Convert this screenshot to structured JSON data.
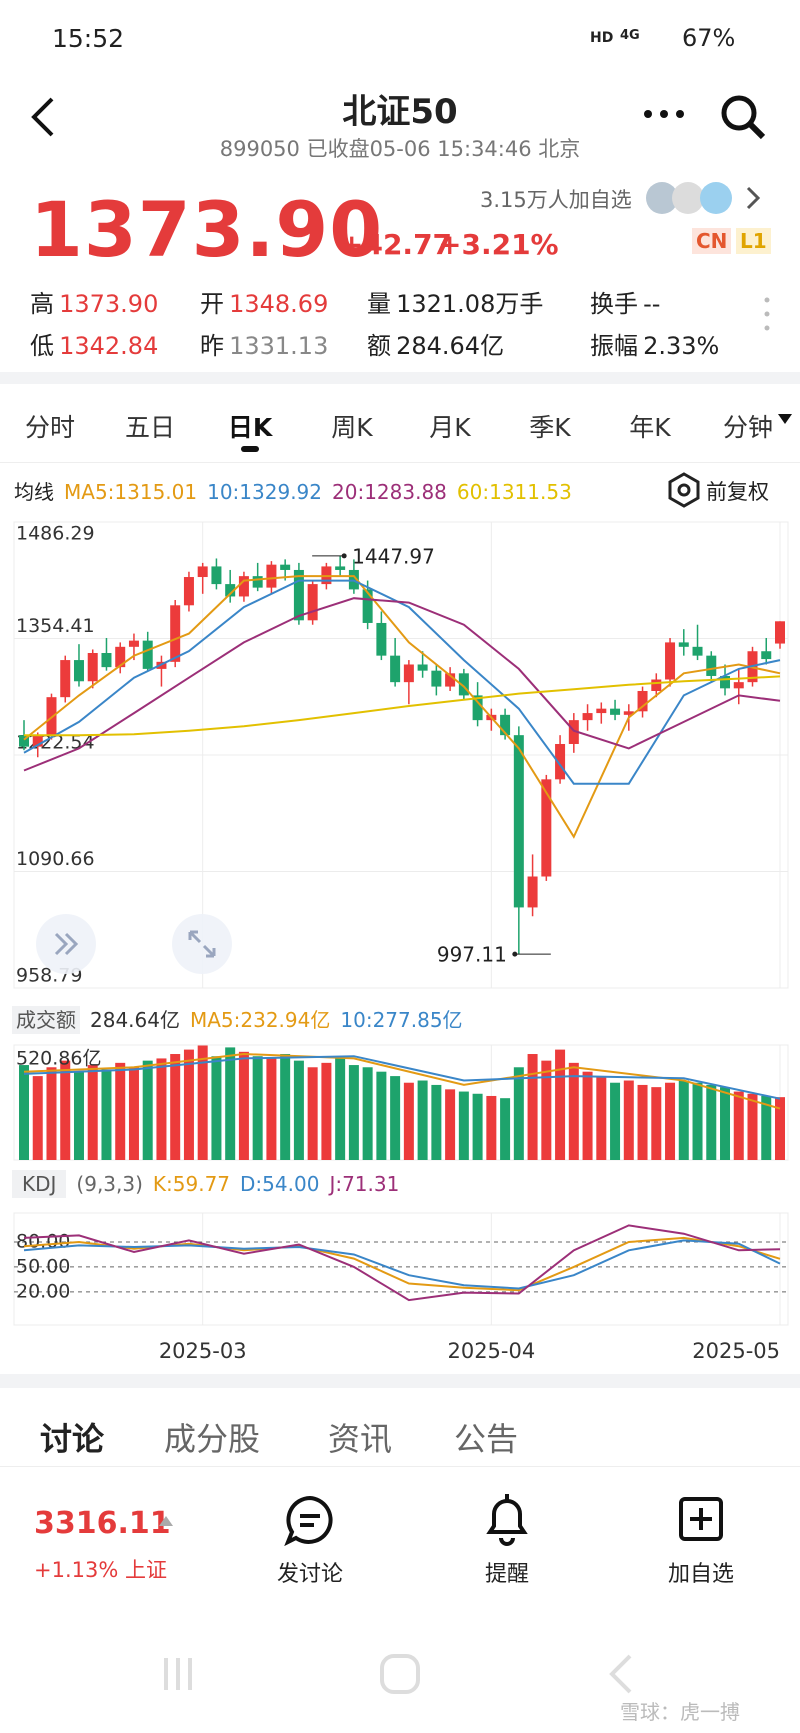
{
  "status_bar": {
    "time": "15:52",
    "network": "HD",
    "signal": "4G",
    "battery": "67%"
  },
  "header": {
    "title": "北证50",
    "subtitle": "899050 已收盘05-06 15:34:46 北京"
  },
  "quote": {
    "price": "1373.90",
    "change": "+42.77",
    "change_pct": "+3.21%",
    "followers": "3.15万人加自选",
    "badges": [
      "CN",
      "L1"
    ],
    "stats": [
      [
        "高",
        "1373.90"
      ],
      [
        "开",
        "1348.69"
      ],
      [
        "量",
        "1321.08万手"
      ],
      [
        "换手",
        "--"
      ],
      [
        "低",
        "1342.84"
      ],
      [
        "昨",
        "1331.13"
      ],
      [
        "额",
        "284.64亿"
      ],
      [
        "振幅",
        "2.33%"
      ]
    ]
  },
  "period_tabs": [
    "分时",
    "五日",
    "日K",
    "周K",
    "月K",
    "季K",
    "年K",
    "分钟"
  ],
  "period_selected": 2,
  "chart": {
    "type": "candlestick",
    "ma_label": "均线",
    "ma_legend": [
      "MA5:1315.01",
      "10:1329.92",
      "20:1283.88",
      "60:1311.53"
    ],
    "adjust": "前复权",
    "up_color": "#ec3b3b",
    "down_color": "#1ea36c",
    "ylim": [
      958.79,
      1486.29
    ],
    "yticks": [
      1486.29,
      1354.41,
      1222.54,
      1090.66,
      958.79
    ],
    "candles": [
      {
        "o": 1245,
        "h": 1262,
        "l": 1228,
        "c": 1232
      },
      {
        "o": 1232,
        "h": 1248,
        "l": 1220,
        "c": 1244
      },
      {
        "o": 1244,
        "h": 1292,
        "l": 1240,
        "c": 1288
      },
      {
        "o": 1288,
        "h": 1335,
        "l": 1282,
        "c": 1330
      },
      {
        "o": 1330,
        "h": 1348,
        "l": 1300,
        "c": 1306
      },
      {
        "o": 1306,
        "h": 1342,
        "l": 1298,
        "c": 1338
      },
      {
        "o": 1338,
        "h": 1355,
        "l": 1318,
        "c": 1322
      },
      {
        "o": 1322,
        "h": 1350,
        "l": 1315,
        "c": 1345
      },
      {
        "o": 1345,
        "h": 1360,
        "l": 1330,
        "c": 1352
      },
      {
        "o": 1352,
        "h": 1362,
        "l": 1318,
        "c": 1320
      },
      {
        "o": 1320,
        "h": 1335,
        "l": 1300,
        "c": 1328
      },
      {
        "o": 1328,
        "h": 1398,
        "l": 1322,
        "c": 1392
      },
      {
        "o": 1392,
        "h": 1430,
        "l": 1385,
        "c": 1424
      },
      {
        "o": 1424,
        "h": 1440,
        "l": 1405,
        "c": 1436
      },
      {
        "o": 1436,
        "h": 1445,
        "l": 1410,
        "c": 1416
      },
      {
        "o": 1416,
        "h": 1432,
        "l": 1395,
        "c": 1402
      },
      {
        "o": 1402,
        "h": 1430,
        "l": 1396,
        "c": 1425
      },
      {
        "o": 1425,
        "h": 1440,
        "l": 1408,
        "c": 1412
      },
      {
        "o": 1412,
        "h": 1442,
        "l": 1405,
        "c": 1438
      },
      {
        "o": 1438,
        "h": 1444,
        "l": 1420,
        "c": 1432
      },
      {
        "o": 1432,
        "h": 1440,
        "l": 1370,
        "c": 1375
      },
      {
        "o": 1375,
        "h": 1420,
        "l": 1370,
        "c": 1416
      },
      {
        "o": 1416,
        "h": 1440,
        "l": 1410,
        "c": 1436
      },
      {
        "o": 1436,
        "h": 1447.97,
        "l": 1425,
        "c": 1432
      },
      {
        "o": 1432,
        "h": 1444,
        "l": 1405,
        "c": 1410
      },
      {
        "o": 1410,
        "h": 1420,
        "l": 1365,
        "c": 1372
      },
      {
        "o": 1372,
        "h": 1385,
        "l": 1330,
        "c": 1335
      },
      {
        "o": 1335,
        "h": 1355,
        "l": 1300,
        "c": 1305
      },
      {
        "o": 1305,
        "h": 1330,
        "l": 1280,
        "c": 1325
      },
      {
        "o": 1325,
        "h": 1340,
        "l": 1310,
        "c": 1318
      },
      {
        "o": 1318,
        "h": 1325,
        "l": 1290,
        "c": 1300
      },
      {
        "o": 1300,
        "h": 1322,
        "l": 1295,
        "c": 1315
      },
      {
        "o": 1315,
        "h": 1320,
        "l": 1285,
        "c": 1290
      },
      {
        "o": 1290,
        "h": 1305,
        "l": 1255,
        "c": 1262
      },
      {
        "o": 1262,
        "h": 1275,
        "l": 1250,
        "c": 1268
      },
      {
        "o": 1268,
        "h": 1275,
        "l": 1240,
        "c": 1245
      },
      {
        "o": 1245,
        "h": 1255,
        "l": 997.11,
        "c": 1050
      },
      {
        "o": 1050,
        "h": 1110,
        "l": 1040,
        "c": 1085
      },
      {
        "o": 1085,
        "h": 1200,
        "l": 1080,
        "c": 1195
      },
      {
        "o": 1195,
        "h": 1245,
        "l": 1190,
        "c": 1235
      },
      {
        "o": 1235,
        "h": 1270,
        "l": 1225,
        "c": 1262
      },
      {
        "o": 1262,
        "h": 1280,
        "l": 1250,
        "c": 1270
      },
      {
        "o": 1270,
        "h": 1282,
        "l": 1258,
        "c": 1275
      },
      {
        "o": 1275,
        "h": 1285,
        "l": 1262,
        "c": 1268
      },
      {
        "o": 1268,
        "h": 1280,
        "l": 1250,
        "c": 1272
      },
      {
        "o": 1272,
        "h": 1300,
        "l": 1265,
        "c": 1295
      },
      {
        "o": 1295,
        "h": 1315,
        "l": 1288,
        "c": 1308
      },
      {
        "o": 1308,
        "h": 1355,
        "l": 1300,
        "c": 1350
      },
      {
        "o": 1350,
        "h": 1365,
        "l": 1335,
        "c": 1345
      },
      {
        "o": 1345,
        "h": 1370,
        "l": 1330,
        "c": 1335
      },
      {
        "o": 1335,
        "h": 1340,
        "l": 1305,
        "c": 1312
      },
      {
        "o": 1312,
        "h": 1325,
        "l": 1290,
        "c": 1298
      },
      {
        "o": 1298,
        "h": 1320,
        "l": 1280,
        "c": 1305
      },
      {
        "o": 1305,
        "h": 1345,
        "l": 1300,
        "c": 1340
      },
      {
        "o": 1340,
        "h": 1355,
        "l": 1325,
        "c": 1331.13
      },
      {
        "o": 1348.69,
        "h": 1373.9,
        "l": 1342.84,
        "c": 1373.9
      }
    ],
    "ma_series": [
      {
        "name": "MA5",
        "color": "#e39a14",
        "x": [
          0,
          4,
          8,
          12,
          16,
          20,
          24,
          28,
          32,
          36,
          40,
          44,
          48,
          52,
          55
        ],
        "values": [
          1240,
          1290,
          1335,
          1360,
          1420,
          1425,
          1425,
          1350,
          1300,
          1230,
          1130,
          1265,
          1315,
          1325,
          1315.01
        ]
      },
      {
        "name": "10",
        "color": "#3a86c8",
        "x": [
          0,
          4,
          8,
          12,
          16,
          20,
          24,
          28,
          32,
          36,
          40,
          44,
          48,
          52,
          55
        ],
        "values": [
          1225,
          1260,
          1310,
          1340,
          1390,
          1420,
          1420,
          1390,
          1330,
          1275,
          1190,
          1190,
          1290,
          1320,
          1329.92
        ]
      },
      {
        "name": "20",
        "color": "#9c2f78",
        "x": [
          0,
          4,
          8,
          12,
          16,
          20,
          24,
          28,
          32,
          36,
          40,
          44,
          48,
          52,
          55
        ],
        "values": [
          1205,
          1230,
          1270,
          1310,
          1350,
          1380,
          1400,
          1395,
          1370,
          1320,
          1250,
          1230,
          1260,
          1290,
          1283.88
        ]
      },
      {
        "name": "60",
        "color": "#e2c000",
        "x": [
          0,
          4,
          8,
          12,
          16,
          20,
          24,
          28,
          32,
          36,
          40,
          44,
          48,
          52,
          55
        ],
        "values": [
          1245,
          1245,
          1246,
          1250,
          1255,
          1262,
          1270,
          1278,
          1285,
          1292,
          1297,
          1302,
          1306,
          1309,
          1311.53
        ]
      }
    ],
    "xticks": [
      {
        "value": 13,
        "label": "2025-03"
      },
      {
        "value": 34,
        "label": "2025-04"
      },
      {
        "value": 55,
        "label": "2025-05"
      }
    ],
    "volume": {
      "label": "成交额",
      "legend": [
        "284.64亿",
        "MA5:232.94亿",
        "10:277.85亿"
      ],
      "ylim": [
        0,
        520.86
      ],
      "yticks": [
        {
          "value": 520.86,
          "label": "520.86亿"
        }
      ],
      "values": [
        430,
        380,
        420,
        450,
        400,
        430,
        410,
        440,
        420,
        450,
        460,
        480,
        500,
        520,
        470,
        510,
        490,
        470,
        460,
        480,
        450,
        420,
        440,
        460,
        430,
        420,
        400,
        380,
        350,
        360,
        340,
        320,
        310,
        300,
        290,
        280,
        420,
        480,
        450,
        500,
        440,
        400,
        380,
        350,
        360,
        340,
        330,
        350,
        360,
        350,
        340,
        330,
        310,
        300,
        290,
        284.64
      ],
      "ma_series": [
        {
          "name": "MA5",
          "color": "#e39a14",
          "x": [
            0,
            8,
            16,
            24,
            32,
            40,
            48,
            55
          ],
          "values": [
            400,
            420,
            480,
            460,
            340,
            420,
            360,
            232.94
          ]
        },
        {
          "name": "10",
          "color": "#3a86c8",
          "x": [
            0,
            8,
            16,
            24,
            32,
            40,
            48,
            55
          ],
          "values": [
            390,
            410,
            460,
            470,
            360,
            380,
            370,
            277.85
          ]
        }
      ]
    },
    "kdj": {
      "label": "KDJ",
      "params": "(9,3,3)",
      "legend": [
        "K:59.77",
        "D:54.00",
        "J:71.31"
      ],
      "ylim": [
        -20,
        115
      ],
      "yticks": [
        {
          "value": 80,
          "label": "80.00"
        },
        {
          "value": 50,
          "label": "50.00"
        },
        {
          "value": 20,
          "label": "20.00"
        }
      ],
      "series": [
        {
          "name": "K",
          "color": "#e39a14",
          "x": [
            0,
            4,
            8,
            12,
            16,
            20,
            24,
            28,
            32,
            36,
            40,
            44,
            48,
            52,
            55
          ],
          "values": [
            75,
            80,
            72,
            78,
            70,
            75,
            60,
            30,
            25,
            22,
            50,
            80,
            85,
            75,
            59.77
          ]
        },
        {
          "name": "D",
          "color": "#3a86c8",
          "x": [
            0,
            4,
            8,
            12,
            16,
            20,
            24,
            28,
            32,
            36,
            40,
            44,
            48,
            52,
            55
          ],
          "values": [
            70,
            76,
            74,
            76,
            72,
            74,
            65,
            40,
            28,
            24,
            40,
            70,
            82,
            78,
            54.0
          ]
        },
        {
          "name": "J",
          "color": "#9c2f78",
          "x": [
            0,
            4,
            8,
            12,
            16,
            20,
            24,
            28,
            32,
            36,
            40,
            44,
            48,
            52,
            55
          ],
          "values": [
            85,
            88,
            68,
            82,
            66,
            77,
            50,
            10,
            19,
            18,
            70,
            100,
            90,
            70,
            71.31
          ]
        }
      ]
    }
  },
  "news_tabs": [
    "讨论",
    "成分股",
    "资讯",
    "公告"
  ],
  "bottom_bar": {
    "index_value": "3316.11",
    "index_change": "+1.13% 上证",
    "actions": [
      "发讨论",
      "提醒",
      "加自选"
    ]
  },
  "watermark": "雪球：虎一搏"
}
